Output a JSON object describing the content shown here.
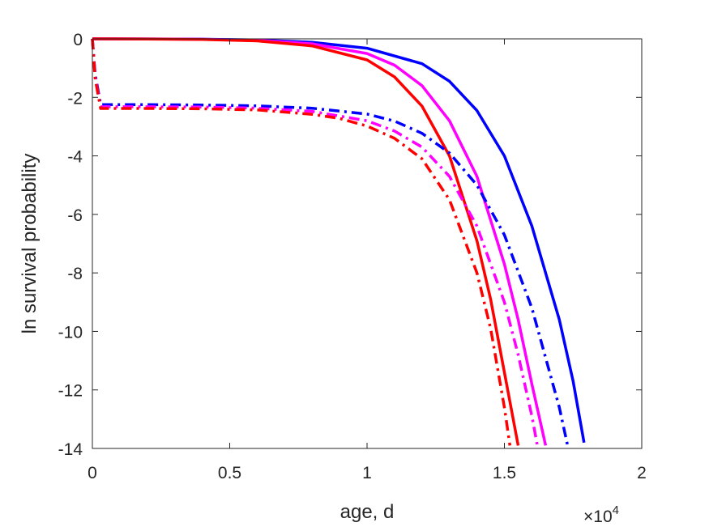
{
  "chart_data": {
    "type": "line",
    "xlabel": "age, d",
    "ylabel": "ln survival probability",
    "x_multiplier": {
      "base": "×10",
      "exponent": "4"
    },
    "xlim": [
      0,
      20000
    ],
    "ylim": [
      -14,
      0
    ],
    "xticks": [
      0,
      5000,
      10000,
      15000,
      20000
    ],
    "xtick_labels": [
      "0",
      "0.5",
      "1",
      "1.5",
      "2"
    ],
    "yticks": [
      0,
      -2,
      -4,
      -6,
      -8,
      -10,
      -12,
      -14
    ],
    "ytick_labels": [
      "0",
      "-2",
      "-4",
      "-6",
      "-8",
      "-10",
      "-12",
      "-14"
    ],
    "grid": false,
    "series": [
      {
        "color": "#0000ff",
        "style": "solid",
        "x": [
          0,
          2000,
          4000,
          6000,
          8000,
          10000,
          12000,
          13000,
          14000,
          15000,
          16000,
          17000,
          17500,
          17900
        ],
        "y": [
          0,
          -0.003,
          -0.012,
          -0.04,
          -0.12,
          -0.32,
          -0.85,
          -1.45,
          -2.45,
          -4.0,
          -6.4,
          -9.6,
          -11.7,
          -13.8
        ]
      },
      {
        "color": "#ff00ff",
        "style": "solid",
        "x": [
          0,
          2000,
          4000,
          6000,
          8000,
          10000,
          11000,
          12000,
          13000,
          14000,
          15000,
          15500,
          16000,
          16500
        ],
        "y": [
          0,
          -0.004,
          -0.015,
          -0.05,
          -0.17,
          -0.5,
          -0.9,
          -1.6,
          -2.8,
          -4.7,
          -7.7,
          -9.6,
          -11.8,
          -13.9
        ]
      },
      {
        "color": "#ff0000",
        "style": "solid",
        "x": [
          0,
          2000,
          4000,
          6000,
          8000,
          10000,
          11000,
          12000,
          13000,
          14000,
          14500,
          15000,
          15500
        ],
        "y": [
          0,
          -0.005,
          -0.02,
          -0.07,
          -0.24,
          -0.72,
          -1.3,
          -2.3,
          -4.0,
          -6.9,
          -8.9,
          -11.4,
          -13.9
        ]
      },
      {
        "color": "#0000ff",
        "style": "dashdot",
        "x": [
          0,
          100,
          300,
          2000,
          4000,
          6000,
          8000,
          10000,
          11000,
          12000,
          13000,
          14000,
          15000,
          16000,
          17000,
          17300
        ],
        "y": [
          0,
          -1.2,
          -2.25,
          -2.25,
          -2.26,
          -2.29,
          -2.37,
          -2.57,
          -2.81,
          -3.23,
          -3.9,
          -5.0,
          -6.7,
          -9.2,
          -12.6,
          -13.9
        ]
      },
      {
        "color": "#ff00ff",
        "style": "dashdot",
        "x": [
          0,
          100,
          300,
          2000,
          4000,
          6000,
          8000,
          10000,
          11000,
          12000,
          13000,
          14000,
          15000,
          15500,
          16000,
          16200
        ],
        "y": [
          0,
          -1.3,
          -2.32,
          -2.32,
          -2.33,
          -2.37,
          -2.48,
          -2.8,
          -3.15,
          -3.7,
          -4.7,
          -6.4,
          -9.0,
          -10.8,
          -12.9,
          -13.9
        ]
      },
      {
        "color": "#ff0000",
        "style": "dashdot",
        "x": [
          0,
          100,
          300,
          2000,
          4000,
          6000,
          8000,
          9000,
          10000,
          11000,
          12000,
          13000,
          14000,
          14500,
          15000,
          15200
        ],
        "y": [
          0,
          -1.35,
          -2.38,
          -2.38,
          -2.39,
          -2.43,
          -2.58,
          -2.72,
          -2.98,
          -3.4,
          -4.1,
          -5.5,
          -8.0,
          -9.9,
          -12.6,
          -13.9
        ]
      }
    ]
  }
}
